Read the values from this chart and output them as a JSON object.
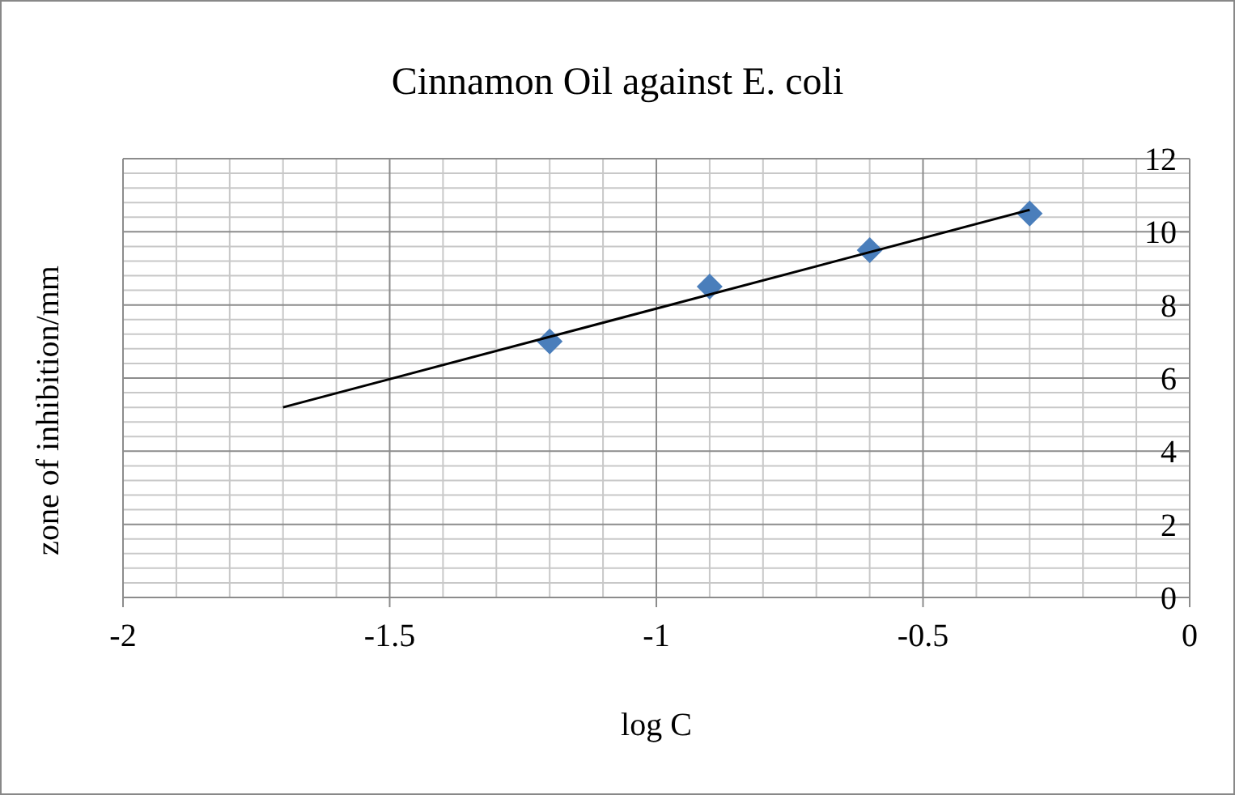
{
  "chart_data": {
    "type": "scatter",
    "title": "Cinnamon Oil against E. coli",
    "xlabel": "log C",
    "ylabel": "zone of inhibition/mm",
    "xlim": [
      -2,
      0
    ],
    "xticks": [
      -2,
      -1.5,
      -1,
      -0.5,
      0
    ],
    "ylim": [
      0,
      12
    ],
    "yticks": [
      0,
      2,
      4,
      6,
      8,
      10,
      12
    ],
    "grid": true,
    "series": [
      {
        "color": "#4a7ebb",
        "marker": "diamond",
        "x": [
          -1.2,
          -0.9,
          -0.6,
          -0.3
        ],
        "values": [
          7,
          8.5,
          9.5,
          10.5
        ]
      },
      {
        "type": "line",
        "color": "#000000",
        "marker": "none",
        "line_style": "solid",
        "x": [
          -1.7,
          -0.3
        ],
        "values": [
          5.2,
          10.6
        ]
      }
    ]
  }
}
